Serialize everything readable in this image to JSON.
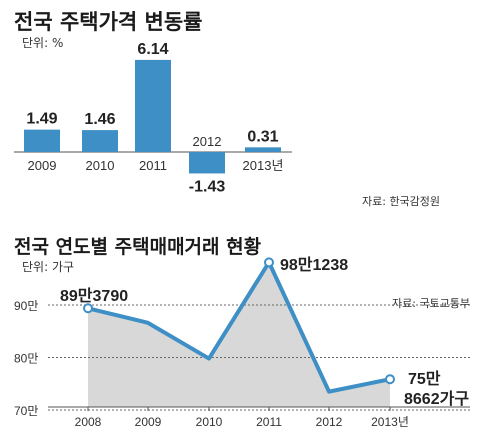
{
  "charts": {
    "top": {
      "title": "전국 주택가격 변동률",
      "unit_label": "단위: %",
      "source": "자료: 한국감정원"
    },
    "bottom": {
      "title": "전국 연도별 주택매매거래 현황",
      "unit_label": "단위: 가구",
      "source": "자료: 국토교통부"
    }
  },
  "colors": {
    "bar": "#3d8fc6",
    "line": "#3d8fc6",
    "area": "#d8d8d8"
  },
  "chart_data": [
    {
      "type": "bar",
      "title": "전국 주택가격 변동률",
      "categories": [
        "2009",
        "2010",
        "2011",
        "2012",
        "2013년"
      ],
      "values": [
        1.49,
        1.46,
        6.14,
        -1.43,
        0.31
      ],
      "value_labels": [
        "1.49",
        "1.46",
        "6.14",
        "-1.43",
        "0.31"
      ],
      "ylabel": "단위: %"
    },
    {
      "type": "area",
      "title": "전국 연도별 주택매매거래 현황",
      "categories": [
        "2008",
        "2009",
        "2010",
        "2011",
        "2012",
        "2013년"
      ],
      "values": [
        893790,
        866000,
        798000,
        981238,
        735000,
        758662
      ],
      "annotations": [
        {
          "index": 0,
          "text": "89만3790"
        },
        {
          "index": 3,
          "text": "98만1238"
        },
        {
          "index": 5,
          "lines": [
            "75만",
            "8662가구"
          ]
        }
      ],
      "y_ticks": [
        {
          "value": 900000,
          "label": "90만"
        },
        {
          "value": 800000,
          "label": "80만"
        },
        {
          "value": 700000,
          "label": "70만"
        }
      ],
      "ylabel": "단위: 가구"
    }
  ]
}
